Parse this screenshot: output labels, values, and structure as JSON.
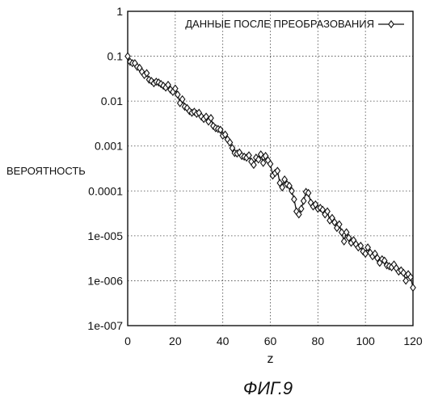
{
  "chart_data": {
    "type": "line",
    "title": "",
    "xlabel": "z",
    "ylabel": "ВЕРОЯТНОСТЬ",
    "y_scale": "log",
    "xlim": [
      0,
      120
    ],
    "ylim": [
      1e-07,
      1
    ],
    "x_ticks": [
      "0",
      "20",
      "40",
      "60",
      "80",
      "100",
      "120"
    ],
    "y_ticks": [
      "1",
      "0.1",
      "0.01",
      "0.001",
      "0.0001",
      "1e-005",
      "1e-006",
      "1e-007"
    ],
    "grid": true,
    "legend_position": "top-right",
    "marker": "diamond",
    "series": [
      {
        "name": "ДАННЫЕ ПОСЛЕ ПРЕОБРАЗОВАНИЯ",
        "x": [
          0,
          1,
          2,
          3,
          4,
          5,
          6,
          7,
          8,
          9,
          10,
          11,
          12,
          13,
          14,
          15,
          16,
          17,
          18,
          19,
          20,
          21,
          22,
          23,
          24,
          25,
          26,
          27,
          28,
          29,
          30,
          31,
          32,
          33,
          34,
          35,
          36,
          37,
          38,
          39,
          40,
          41,
          42,
          43,
          44,
          45,
          46,
          47,
          48,
          49,
          50,
          51,
          52,
          53,
          54,
          55,
          56,
          57,
          58,
          59,
          60,
          61,
          62,
          63,
          64,
          65,
          66,
          67,
          68,
          69,
          70,
          71,
          72,
          73,
          74,
          75,
          76,
          77,
          78,
          79,
          80,
          81,
          82,
          83,
          84,
          85,
          86,
          87,
          88,
          89,
          90,
          91,
          92,
          93,
          94,
          95,
          96,
          97,
          98,
          99,
          100,
          101,
          102,
          103,
          104,
          105,
          106,
          107,
          108,
          109,
          110,
          111,
          112,
          113,
          114,
          115,
          116,
          117,
          118,
          119,
          120
        ],
        "y": [
          0.1,
          0.075,
          0.07,
          0.07,
          0.058,
          0.055,
          0.045,
          0.038,
          0.042,
          0.03,
          0.028,
          0.025,
          0.027,
          0.026,
          0.024,
          0.022,
          0.02,
          0.023,
          0.018,
          0.016,
          0.019,
          0.014,
          0.009,
          0.011,
          0.0075,
          0.007,
          0.006,
          0.0055,
          0.0058,
          0.0052,
          0.0055,
          0.0045,
          0.004,
          0.0045,
          0.0035,
          0.0042,
          0.0028,
          0.0025,
          0.0024,
          0.0023,
          0.0017,
          0.0018,
          0.0014,
          0.0012,
          0.0009,
          0.0007,
          0.00068,
          0.00072,
          0.0006,
          0.00058,
          0.00055,
          0.00062,
          0.00045,
          0.00038,
          0.00055,
          0.0005,
          0.00065,
          0.00042,
          0.0006,
          0.00048,
          0.0004,
          0.00022,
          0.00025,
          0.00028,
          0.00015,
          0.00012,
          0.00018,
          0.00014,
          0.00013,
          0.0001,
          6.5e-05,
          3.5e-05,
          3e-05,
          4e-05,
          6e-05,
          9.5e-05,
          9e-05,
          5.5e-05,
          4.5e-05,
          5e-05,
          4e-05,
          4.2e-05,
          3.8e-05,
          3e-05,
          3.5e-05,
          2.2e-05,
          2.5e-05,
          2e-05,
          1.5e-05,
          1.8e-05,
          1.2e-05,
          7.5e-06,
          1.2e-05,
          9e-06,
          7e-06,
          8e-06,
          6.5e-06,
          5.5e-06,
          6e-06,
          4.5e-06,
          4e-06,
          5.5e-06,
          4.2e-06,
          3.5e-06,
          4e-06,
          3.2e-06,
          2.5e-06,
          3e-06,
          2.8e-06,
          2.2e-06,
          2.1e-06,
          2e-06,
          2.3e-06,
          1.9e-06,
          1.6e-06,
          1.7e-06,
          1.5e-06,
          1e-06,
          1.4e-06,
          1.2e-06,
          7e-07
        ]
      }
    ]
  },
  "caption": "ФИГ.9"
}
